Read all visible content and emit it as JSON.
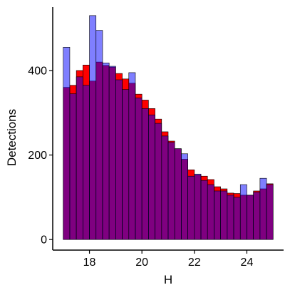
{
  "chart_data": {
    "type": "bar",
    "title": "",
    "xlabel": "H",
    "ylabel": "Detections",
    "xlim": [
      16.6,
      25.4
    ],
    "ylim": [
      -25,
      550
    ],
    "xticks": [
      18,
      20,
      22,
      24
    ],
    "yticks": [
      0,
      200,
      400
    ],
    "bin_edges": [
      17.0,
      17.25,
      17.5,
      17.75,
      18.0,
      18.25,
      18.5,
      18.75,
      19.0,
      19.25,
      19.5,
      19.75,
      20.0,
      20.25,
      20.5,
      20.75,
      21.0,
      21.25,
      21.5,
      21.75,
      22.0,
      22.25,
      22.5,
      22.75,
      23.0,
      23.25,
      23.5,
      23.75,
      24.0,
      24.25,
      24.5,
      24.75,
      25.0
    ],
    "grid": false,
    "legend": "none",
    "series": [
      {
        "values": [
          360,
          365,
          400,
          413,
          375,
          420,
          412,
          408,
          393,
          380,
          370,
          344,
          330,
          310,
          285,
          255,
          233,
          215,
          190,
          165,
          153,
          150,
          142,
          125,
          120,
          110,
          109,
          105,
          105,
          115,
          120,
          132
        ],
        "color": "#ff0000"
      },
      {
        "values": [
          455,
          345,
          385,
          365,
          530,
          495,
          418,
          410,
          378,
          355,
          395,
          335,
          310,
          295,
          275,
          245,
          230,
          215,
          203,
          150,
          155,
          140,
          130,
          115,
          115,
          105,
          100,
          130,
          105,
          112,
          145,
          130
        ],
        "color": "#0000ff",
        "opacity": 0.5
      }
    ],
    "overlap_color": "#800080"
  }
}
